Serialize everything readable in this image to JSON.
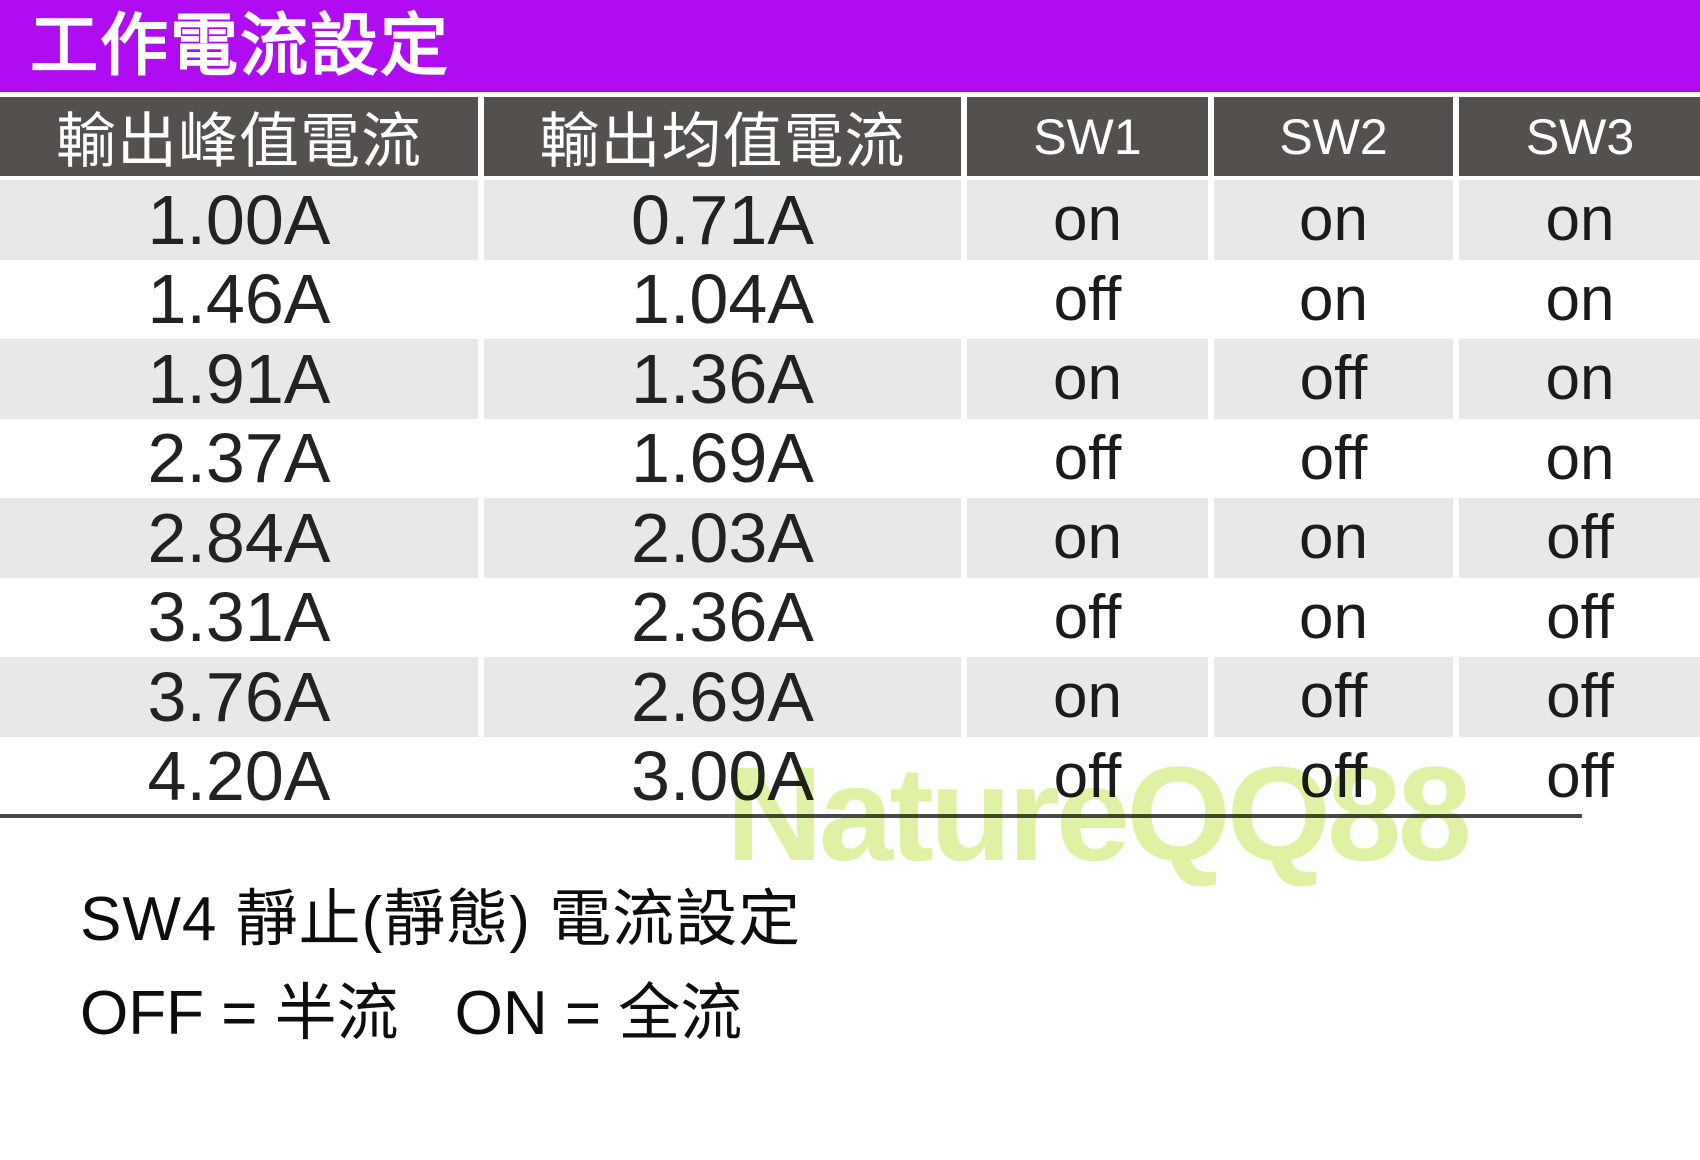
{
  "title": "工作電流設定",
  "table": {
    "columns": [
      "輸出峰值電流",
      "輸出均值電流",
      "SW1",
      "SW2",
      "SW3"
    ],
    "rows": [
      [
        "1.00A",
        "0.71A",
        "on",
        "on",
        "on"
      ],
      [
        "1.46A",
        "1.04A",
        "off",
        "on",
        "on"
      ],
      [
        "1.91A",
        "1.36A",
        "on",
        "off",
        "on"
      ],
      [
        "2.37A",
        "1.69A",
        "off",
        "off",
        "on"
      ],
      [
        "2.84A",
        "2.03A",
        "on",
        "on",
        "off"
      ],
      [
        "3.31A",
        "2.36A",
        "off",
        "on",
        "off"
      ],
      [
        "3.76A",
        "2.69A",
        "on",
        "off",
        "off"
      ],
      [
        "4.20A",
        "3.00A",
        "off",
        "off",
        "off"
      ]
    ]
  },
  "footnote": {
    "line1": "SW4 靜止(靜態) 電流設定",
    "line2a": "OFF = 半流",
    "line2b": "ON = 全流"
  },
  "watermark": "NatureQQ88",
  "colors": {
    "title_bar": "#B00CF2",
    "header_bg": "#54504D",
    "row_alt_bg": "#E8E8E8",
    "divider": "#4b4943",
    "watermark_color": "#DFF2A4"
  }
}
